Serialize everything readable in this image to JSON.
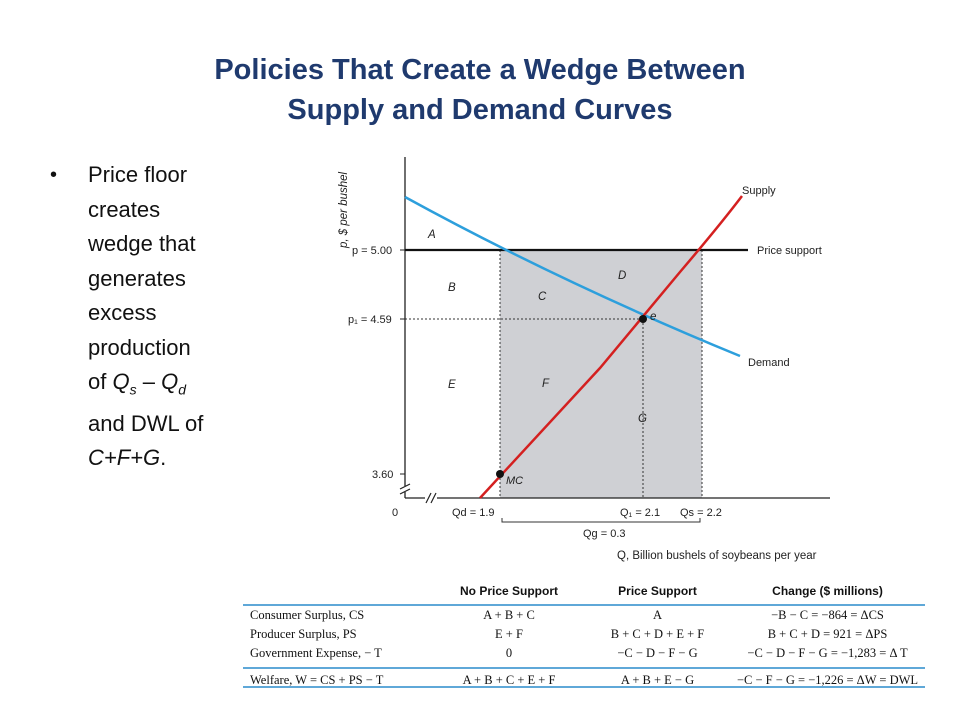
{
  "title": {
    "line1": "Policies That Create a Wedge Between",
    "line2": "Supply and Demand Curves"
  },
  "bullet": {
    "lines": [
      "Price floor",
      "creates",
      "wedge that",
      "generates",
      "excess",
      "production"
    ],
    "qs_pre": "of ",
    "qs_q1": "Q",
    "qs_sub1": "s",
    "qs_mid": " – ",
    "qs_q2": "Q",
    "qs_sub2": "d",
    "dwl_line": "and DWL of",
    "dwl_area": "C+F+G",
    "dwl_end": "."
  },
  "graph": {
    "y_axis_label": "p, $ per bushel",
    "x_axis_label": "Q, Billion bushels of soybeans per year",
    "ticks": {
      "p_support": "p = 5.00",
      "p1": "p₁ = 4.59",
      "p_low": "3.60",
      "origin": "0",
      "qd": "Qd = 1.9",
      "q1": "Q₁ = 2.1",
      "qs": "Qs = 2.2",
      "qg": "Qg = 0.3"
    },
    "curve_labels": {
      "supply": "Supply",
      "demand": "Demand",
      "price_support": "Price support"
    },
    "point_labels": {
      "e": "e",
      "mc": "MC"
    },
    "areas": [
      "A",
      "B",
      "C",
      "D",
      "E",
      "F",
      "G"
    ],
    "colors": {
      "supply": "#d42020",
      "demand": "#2d9fdc",
      "wedge": "#cfd0d4",
      "support": "#111111"
    }
  },
  "table": {
    "headers": [
      "",
      "No Price Support",
      "Price Support",
      "Change ($ millions)"
    ],
    "rows": [
      [
        "Consumer Surplus, CS",
        "A + B + C",
        "A",
        "−B − C = −864 = ΔCS"
      ],
      [
        "Producer Surplus, PS",
        "E + F",
        "B + C + D + E + F",
        "B + C + D = 921 = ΔPS"
      ],
      [
        "Government Expense, − T",
        "0",
        "−C − D − F − G",
        "−C − D − F − G = −1,283 = Δ T"
      ]
    ],
    "welfare": [
      "Welfare, W = CS + PS − T",
      "A + B + C + E + F",
      "A + B + E − G",
      "−C − F − G = −1,226 = ΔW = DWL"
    ]
  }
}
